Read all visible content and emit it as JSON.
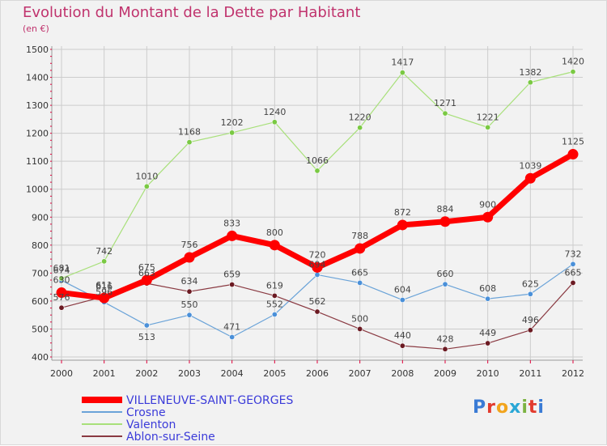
{
  "header": {
    "title": "Evolution du Montant de la Dette par Habitant",
    "subtitle": "(en €)"
  },
  "logo": {
    "text": "Proxiti",
    "colors": [
      "#3a7bd5",
      "#e23b2e",
      "#f2a41c",
      "#2aa7d6",
      "#7cb342",
      "#e23b2e",
      "#3a7bd5"
    ]
  },
  "colors": {
    "background": "#f2f2f2",
    "title": "#c0336d",
    "grid": "#cccccc",
    "axis_ticks": "#e0003a"
  },
  "chart_data": {
    "type": "line",
    "x": [
      2000,
      2001,
      2002,
      2003,
      2004,
      2005,
      2006,
      2007,
      2008,
      2009,
      2010,
      2011,
      2012
    ],
    "ylim": [
      400,
      1500
    ],
    "yticks": [
      400,
      500,
      600,
      700,
      800,
      900,
      1000,
      1100,
      1200,
      1300,
      1400,
      1500
    ],
    "grid": true,
    "legend_position": "bottom-left",
    "series": [
      {
        "name": "VILLENEUVE-SAINT-GEORGES",
        "color": "#ff0000",
        "line_color": "#ff0000",
        "marker_color": "#ff0000",
        "legend_text_color": "#3b3bd9",
        "emphasis": true,
        "values": [
          630,
          611,
          675,
          756,
          833,
          800,
          720,
          788,
          872,
          884,
          900,
          1039,
          1125
        ]
      },
      {
        "name": "Crosne",
        "color": "#5b9bd5",
        "line_color": "#6aa3d8",
        "marker_color": "#4a90d9",
        "legend_text_color": "#3b3bd9",
        "emphasis": false,
        "values": [
          674,
          596,
          513,
          550,
          471,
          552,
          694,
          665,
          604,
          660,
          608,
          625,
          732
        ]
      },
      {
        "name": "Valenton",
        "color": "#9ee06a",
        "line_color": "#a8e07a",
        "marker_color": "#7ac943",
        "legend_text_color": "#3b3bd9",
        "emphasis": false,
        "values": [
          681,
          742,
          1010,
          1168,
          1202,
          1240,
          1066,
          1220,
          1417,
          1271,
          1221,
          1382,
          1420
        ]
      },
      {
        "name": "Ablon-sur-Seine",
        "color": "#7a1f2b",
        "line_color": "#8a3a42",
        "marker_color": "#6b1a22",
        "legend_text_color": "#3b3bd9",
        "emphasis": false,
        "values": [
          576,
          616,
          663,
          634,
          659,
          619,
          562,
          500,
          440,
          428,
          449,
          496,
          665
        ]
      }
    ],
    "data_labels": [
      {
        "series": 1,
        "i": 0,
        "text": "674",
        "pos": "above"
      },
      {
        "series": 2,
        "i": 0,
        "text": "681",
        "pos": "above"
      },
      {
        "series": 0,
        "i": 0,
        "text": "630",
        "pos": "above"
      },
      {
        "series": 3,
        "i": 0,
        "text": "576",
        "pos": "above"
      },
      {
        "series": 3,
        "i": 1,
        "text": "616",
        "pos": "above"
      },
      {
        "series": 0,
        "i": 1,
        "text": "611",
        "pos": "above"
      },
      {
        "series": 1,
        "i": 1,
        "text": "596",
        "pos": "above"
      },
      {
        "series": 2,
        "i": 1,
        "text": "742",
        "pos": "above"
      },
      {
        "series": 0,
        "i": 2,
        "text": "675",
        "pos": "above"
      },
      {
        "series": 3,
        "i": 2,
        "text": "663",
        "pos": "above"
      },
      {
        "series": 1,
        "i": 2,
        "text": "513",
        "pos": "below"
      },
      {
        "series": 2,
        "i": 2,
        "text": "1010",
        "pos": "above"
      },
      {
        "series": 0,
        "i": 3,
        "text": "756",
        "pos": "above"
      },
      {
        "series": 3,
        "i": 3,
        "text": "634",
        "pos": "above"
      },
      {
        "series": 1,
        "i": 3,
        "text": "550",
        "pos": "above"
      },
      {
        "series": 2,
        "i": 3,
        "text": "1168",
        "pos": "above"
      },
      {
        "series": 0,
        "i": 4,
        "text": "833",
        "pos": "above"
      },
      {
        "series": 3,
        "i": 4,
        "text": "659",
        "pos": "above"
      },
      {
        "series": 1,
        "i": 4,
        "text": "471",
        "pos": "above"
      },
      {
        "series": 2,
        "i": 4,
        "text": "1202",
        "pos": "above"
      },
      {
        "series": 0,
        "i": 5,
        "text": "800",
        "pos": "above"
      },
      {
        "series": 3,
        "i": 5,
        "text": "619",
        "pos": "above"
      },
      {
        "series": 1,
        "i": 5,
        "text": "552",
        "pos": "above"
      },
      {
        "series": 2,
        "i": 5,
        "text": "1240",
        "pos": "above"
      },
      {
        "series": 0,
        "i": 6,
        "text": "720",
        "pos": "above"
      },
      {
        "series": 1,
        "i": 6,
        "text": "694",
        "pos": "above"
      },
      {
        "series": 3,
        "i": 6,
        "text": "562",
        "pos": "above"
      },
      {
        "series": 2,
        "i": 6,
        "text": "1066",
        "pos": "above"
      },
      {
        "series": 0,
        "i": 7,
        "text": "788",
        "pos": "above"
      },
      {
        "series": 1,
        "i": 7,
        "text": "665",
        "pos": "above"
      },
      {
        "series": 3,
        "i": 7,
        "text": "500",
        "pos": "above"
      },
      {
        "series": 2,
        "i": 7,
        "text": "1220",
        "pos": "above"
      },
      {
        "series": 0,
        "i": 8,
        "text": "872",
        "pos": "above"
      },
      {
        "series": 1,
        "i": 8,
        "text": "604",
        "pos": "above"
      },
      {
        "series": 3,
        "i": 8,
        "text": "440",
        "pos": "above"
      },
      {
        "series": 2,
        "i": 8,
        "text": "1417",
        "pos": "above"
      },
      {
        "series": 0,
        "i": 9,
        "text": "884",
        "pos": "above"
      },
      {
        "series": 1,
        "i": 9,
        "text": "660",
        "pos": "above"
      },
      {
        "series": 3,
        "i": 9,
        "text": "428",
        "pos": "above"
      },
      {
        "series": 2,
        "i": 9,
        "text": "1271",
        "pos": "above"
      },
      {
        "series": 0,
        "i": 10,
        "text": "900",
        "pos": "above"
      },
      {
        "series": 1,
        "i": 10,
        "text": "608",
        "pos": "above"
      },
      {
        "series": 3,
        "i": 10,
        "text": "449",
        "pos": "above"
      },
      {
        "series": 2,
        "i": 10,
        "text": "1221",
        "pos": "above"
      },
      {
        "series": 0,
        "i": 11,
        "text": "1039",
        "pos": "above"
      },
      {
        "series": 1,
        "i": 11,
        "text": "625",
        "pos": "above"
      },
      {
        "series": 3,
        "i": 11,
        "text": "496",
        "pos": "above"
      },
      {
        "series": 2,
        "i": 11,
        "text": "1382",
        "pos": "above"
      },
      {
        "series": 0,
        "i": 12,
        "text": "1125",
        "pos": "above"
      },
      {
        "series": 1,
        "i": 12,
        "text": "732",
        "pos": "above"
      },
      {
        "series": 3,
        "i": 12,
        "text": "665",
        "pos": "above"
      },
      {
        "series": 2,
        "i": 12,
        "text": "1420",
        "pos": "above"
      }
    ]
  }
}
